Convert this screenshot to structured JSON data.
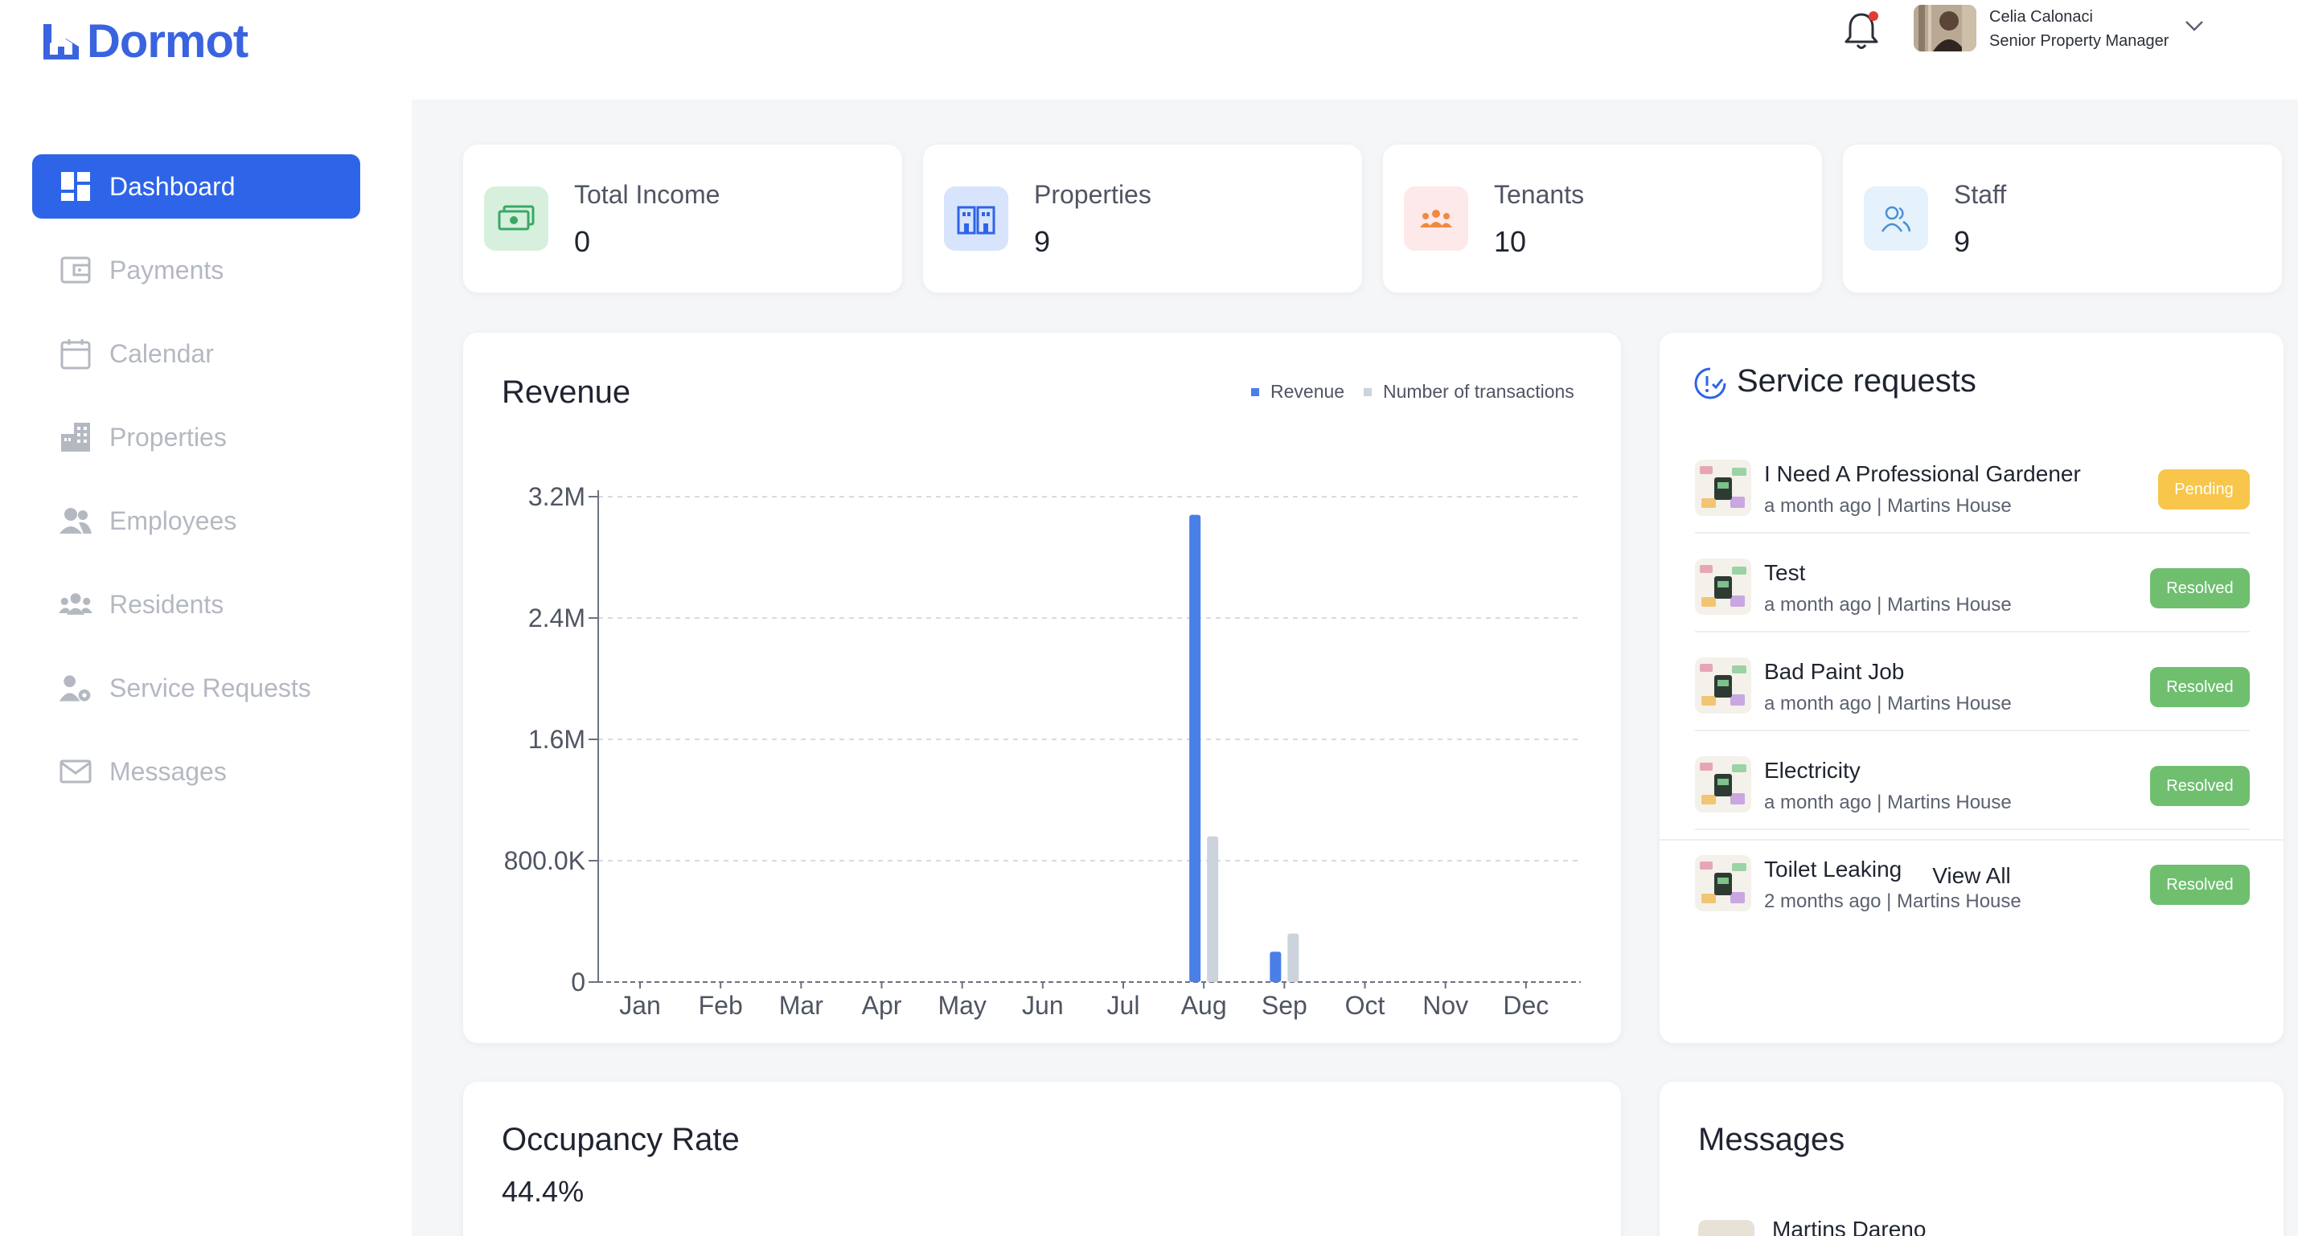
{
  "brand": {
    "name": "Dormot",
    "color": "#3a63e0"
  },
  "header": {
    "user_name": "Celia Calonaci",
    "user_role": "Senior Property Manager",
    "notifications_icon": "bell-icon",
    "has_unread": true
  },
  "sidebar": {
    "items": [
      {
        "label": "Dashboard",
        "icon": "dashboard-icon",
        "active": true
      },
      {
        "label": "Payments",
        "icon": "wallet-icon",
        "active": false
      },
      {
        "label": "Calendar",
        "icon": "calendar-icon",
        "active": false
      },
      {
        "label": "Properties",
        "icon": "building-icon",
        "active": false
      },
      {
        "label": "Employees",
        "icon": "people-icon",
        "active": false
      },
      {
        "label": "Residents",
        "icon": "group-icon",
        "active": false
      },
      {
        "label": "Service Requests",
        "icon": "user-gear-icon",
        "active": false
      },
      {
        "label": "Messages",
        "icon": "mail-icon",
        "active": false
      }
    ]
  },
  "stats": [
    {
      "label": "Total Income",
      "value": "0",
      "icon": "cash-icon",
      "color": "#d6f0dd"
    },
    {
      "label": "Properties",
      "value": "9",
      "icon": "apartments-icon",
      "color": "#d8e4fb"
    },
    {
      "label": "Tenants",
      "value": "10",
      "icon": "tenants-icon",
      "color": "#fde8ea"
    },
    {
      "label": "Staff",
      "value": "9",
      "icon": "staff-icon",
      "color": "#e5f1fb"
    }
  ],
  "revenue": {
    "title": "Revenue",
    "legend": [
      "Revenue",
      "Number of transactions"
    ]
  },
  "chart_data": {
    "type": "bar",
    "categories": [
      "Jan",
      "Feb",
      "Mar",
      "Apr",
      "May",
      "Jun",
      "Jul",
      "Aug",
      "Sep",
      "Oct",
      "Nov",
      "Dec"
    ],
    "series": [
      {
        "name": "Revenue",
        "color": "#4a7fe8",
        "values": [
          0,
          0,
          0,
          0,
          0,
          0,
          0,
          3080000,
          200000,
          0,
          0,
          0
        ]
      },
      {
        "name": "Number of transactions",
        "color": "#ccd3dd",
        "values": [
          0,
          0,
          0,
          0,
          0,
          0,
          0,
          960000,
          320000,
          0,
          0,
          0
        ]
      }
    ],
    "yticks": [
      "0",
      "800.0K",
      "1.6M",
      "2.4M",
      "3.2M"
    ],
    "ylim": [
      0,
      3200000
    ],
    "grid": true,
    "legend_position": "top-right"
  },
  "service_requests": {
    "title": "Service requests",
    "view_all_label": "View All",
    "items": [
      {
        "title": "I Need A Professional Gardener",
        "time": "a month ago",
        "location": "Martins House",
        "status": "Pending"
      },
      {
        "title": "Test",
        "time": "a month ago",
        "location": "Martins House",
        "status": "Resolved"
      },
      {
        "title": "Bad Paint Job",
        "time": "a month ago",
        "location": "Martins House",
        "status": "Resolved"
      },
      {
        "title": "Electricity",
        "time": "a month ago",
        "location": "Martins House",
        "status": "Resolved"
      },
      {
        "title": "Toilet Leaking",
        "time": "2 months ago",
        "location": "Martins House",
        "status": "Resolved"
      }
    ]
  },
  "occupancy": {
    "title": "Occupancy Rate",
    "value": "44.4%"
  },
  "messages": {
    "title": "Messages",
    "first_sender": "Martins Dareno"
  }
}
